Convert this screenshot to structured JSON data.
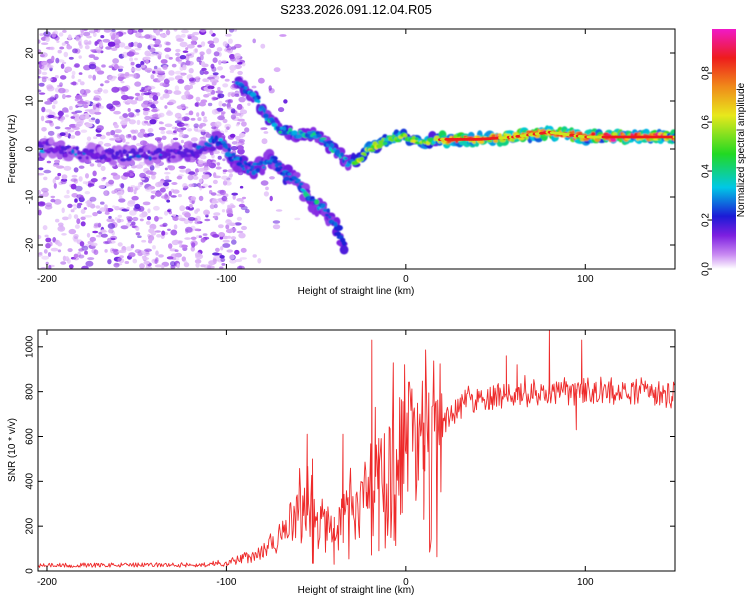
{
  "figure": {
    "title": "S233.2026.091.12.04.R05"
  },
  "chart_data": [
    {
      "type": "heatmap",
      "xlabel": "Height of straight line (km)",
      "ylabel": "Frequency (Hz)",
      "xlim": [
        -205,
        150
      ],
      "ylim": [
        -25,
        25
      ],
      "xticks": [
        -200,
        -100,
        0,
        100
      ],
      "yticks": [
        -20,
        -10,
        0,
        10,
        20
      ],
      "ridge": [
        {
          "x": -204,
          "y": 0.5
        },
        {
          "x": -180,
          "y": -1
        },
        {
          "x": -160,
          "y": -1.5
        },
        {
          "x": -140,
          "y": -1
        },
        {
          "x": -120,
          "y": -0.5
        },
        {
          "x": -104,
          "y": 2
        },
        {
          "x": -96,
          "y": -2
        },
        {
          "x": -88,
          "y": -4
        },
        {
          "x": -82,
          "y": -4
        },
        {
          "x": -75,
          "y": -2
        },
        {
          "x": -68,
          "y": -5
        },
        {
          "x": -60,
          "y": -7
        },
        {
          "x": -52,
          "y": -11
        },
        {
          "x": -44,
          "y": -13
        },
        {
          "x": -38,
          "y": -17
        },
        {
          "x": -34,
          "y": -21
        }
      ],
      "branch": [
        {
          "x": -94,
          "y": 14
        },
        {
          "x": -85,
          "y": 11
        },
        {
          "x": -78,
          "y": 7
        },
        {
          "x": -70,
          "y": 4
        },
        {
          "x": -60,
          "y": 3
        },
        {
          "x": -50,
          "y": 3
        },
        {
          "x": -40,
          "y": 0
        },
        {
          "x": -32,
          "y": -3
        },
        {
          "x": -26,
          "y": -2
        },
        {
          "x": -20,
          "y": 0
        },
        {
          "x": -10,
          "y": 2
        },
        {
          "x": 0,
          "y": 2.5
        },
        {
          "x": 10,
          "y": 1.5
        },
        {
          "x": 20,
          "y": 2
        },
        {
          "x": 40,
          "y": 2
        },
        {
          "x": 60,
          "y": 2.5
        },
        {
          "x": 80,
          "y": 3.5
        },
        {
          "x": 100,
          "y": 2.5
        },
        {
          "x": 120,
          "y": 2.5
        },
        {
          "x": 150,
          "y": 2.5
        }
      ],
      "colorbar": {
        "label": "Normalized spectral amplitude",
        "range": [
          0,
          0.98
        ],
        "ticks": [
          0.0,
          0.2,
          0.4,
          0.6,
          0.8
        ],
        "tick_labels": [
          "0.0",
          "0.2",
          "0.4",
          "0.6",
          "0.8"
        ],
        "colors": [
          "#ffffff",
          "#c98af2",
          "#7d1fe0",
          "#1b1bd6",
          "#00c8e6",
          "#22d922",
          "#e8e81c",
          "#f08a1a",
          "#ee1c1c",
          "#f019c8"
        ]
      }
    },
    {
      "type": "line",
      "xlabel": "Height of straight line (km)",
      "ylabel": "SNR (10 * v/v)",
      "xlim": [
        -205,
        150
      ],
      "ylim": [
        0,
        1075
      ],
      "xticks": [
        -200,
        -100,
        0,
        100
      ],
      "yticks": [
        0,
        200,
        400,
        600,
        800,
        1000
      ],
      "series": [
        {
          "name": "SNR",
          "color": "#ee2a2a",
          "envelope": [
            {
              "x": -205,
              "y": 25
            },
            {
              "x": -110,
              "y": 28
            },
            {
              "x": -95,
              "y": 45
            },
            {
              "x": -80,
              "y": 85
            },
            {
              "x": -70,
              "y": 150
            },
            {
              "x": -62,
              "y": 240
            },
            {
              "x": -55,
              "y": 250
            },
            {
              "x": -48,
              "y": 190
            },
            {
              "x": -40,
              "y": 170
            },
            {
              "x": -32,
              "y": 250
            },
            {
              "x": -24,
              "y": 320
            },
            {
              "x": -20,
              "y": 380
            },
            {
              "x": -15,
              "y": 450
            },
            {
              "x": -10,
              "y": 520
            },
            {
              "x": -5,
              "y": 560
            },
            {
              "x": 0,
              "y": 560
            },
            {
              "x": 5,
              "y": 520
            },
            {
              "x": 10,
              "y": 560
            },
            {
              "x": 15,
              "y": 600
            },
            {
              "x": 20,
              "y": 640
            },
            {
              "x": 25,
              "y": 700
            },
            {
              "x": 30,
              "y": 730
            },
            {
              "x": 40,
              "y": 760
            },
            {
              "x": 55,
              "y": 780
            },
            {
              "x": 80,
              "y": 790
            },
            {
              "x": 100,
              "y": 790
            },
            {
              "x": 130,
              "y": 790
            },
            {
              "x": 150,
              "y": 780
            }
          ],
          "spikes": [
            {
              "x": -55,
              "y": 610
            },
            {
              "x": -52,
              "y": 500
            },
            {
              "x": -35,
              "y": 610
            },
            {
              "x": -19,
              "y": 1030
            },
            {
              "x": -17,
              "y": 730
            },
            {
              "x": 10,
              "y": 660
            },
            {
              "x": 80,
              "y": 1075
            },
            {
              "x": 98,
              "y": 1030
            },
            {
              "x": 62,
              "y": 920
            },
            {
              "x": 56,
              "y": 960
            }
          ],
          "dips": [
            {
              "x": -40,
              "y": 30
            },
            {
              "x": -15,
              "y": 90
            },
            {
              "x": -22,
              "y": 290
            },
            {
              "x": 10,
              "y": 230
            },
            {
              "x": 95,
              "y": 630
            }
          ]
        }
      ]
    }
  ]
}
